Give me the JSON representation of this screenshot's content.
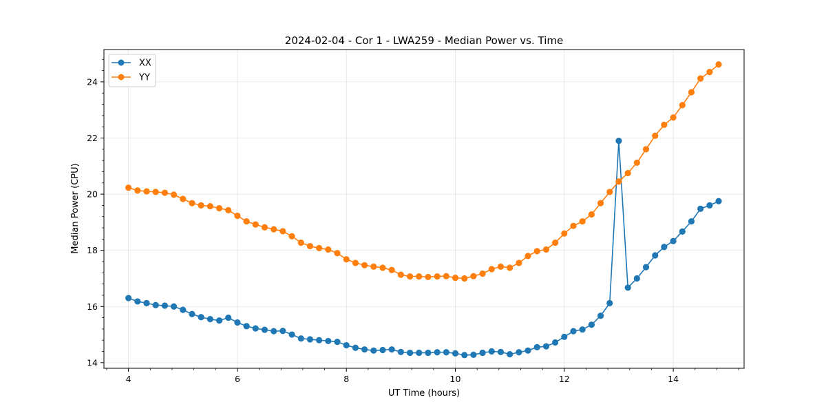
{
  "chart_data": {
    "type": "line",
    "title": "2024-02-04 - Cor 1 - LWA259 - Median Power vs. Time",
    "xlabel": "UT Time (hours)",
    "ylabel": "Median Power (CPU)",
    "xlim": [
      3.55,
      15.3
    ],
    "ylim": [
      13.8,
      25.15
    ],
    "xticks": [
      4,
      6,
      8,
      10,
      12,
      14
    ],
    "xtick_labels": [
      "4",
      "6",
      "8",
      "10",
      "12",
      "14"
    ],
    "yticks": [
      14,
      16,
      18,
      20,
      22,
      24
    ],
    "ytick_labels": [
      "14",
      "16",
      "18",
      "20",
      "22",
      "24"
    ],
    "grid": true,
    "legend_position": "top-left",
    "x": [
      4.0,
      4.167,
      4.333,
      4.5,
      4.667,
      4.833,
      5.0,
      5.167,
      5.333,
      5.5,
      5.667,
      5.833,
      6.0,
      6.167,
      6.333,
      6.5,
      6.667,
      6.833,
      7.0,
      7.167,
      7.333,
      7.5,
      7.667,
      7.833,
      8.0,
      8.167,
      8.333,
      8.5,
      8.667,
      8.833,
      9.0,
      9.167,
      9.333,
      9.5,
      9.667,
      9.833,
      10.0,
      10.167,
      10.333,
      10.5,
      10.667,
      10.833,
      11.0,
      11.167,
      11.333,
      11.5,
      11.667,
      11.833,
      12.0,
      12.167,
      12.333,
      12.5,
      12.667,
      12.833,
      13.0,
      13.167,
      13.333,
      13.5,
      13.667,
      13.833,
      14.0,
      14.167,
      14.333,
      14.5,
      14.667,
      14.833
    ],
    "series": [
      {
        "name": "XX",
        "color": "#1f77b4",
        "values": [
          16.3,
          16.18,
          16.12,
          16.05,
          16.03,
          16.0,
          15.88,
          15.73,
          15.62,
          15.55,
          15.5,
          15.6,
          15.43,
          15.3,
          15.22,
          15.17,
          15.12,
          15.13,
          15.0,
          14.86,
          14.83,
          14.8,
          14.77,
          14.74,
          14.62,
          14.53,
          14.47,
          14.43,
          14.45,
          14.47,
          14.38,
          14.35,
          14.35,
          14.35,
          14.37,
          14.37,
          14.33,
          14.27,
          14.28,
          14.35,
          14.4,
          14.38,
          14.3,
          14.37,
          14.43,
          14.55,
          14.58,
          14.72,
          14.92,
          15.12,
          15.18,
          15.35,
          15.67,
          16.12,
          21.9,
          16.67,
          17.0,
          17.4,
          17.82,
          18.12,
          18.33,
          18.67,
          19.03,
          19.48,
          19.6,
          19.75
        ]
      },
      {
        "name": "YY",
        "color": "#ff7f0e",
        "values": [
          20.23,
          20.13,
          20.1,
          20.08,
          20.05,
          19.98,
          19.83,
          19.68,
          19.6,
          19.57,
          19.5,
          19.43,
          19.23,
          19.03,
          18.92,
          18.82,
          18.75,
          18.68,
          18.5,
          18.27,
          18.15,
          18.08,
          18.03,
          17.9,
          17.68,
          17.55,
          17.47,
          17.42,
          17.38,
          17.3,
          17.13,
          17.07,
          17.07,
          17.05,
          17.07,
          17.08,
          17.02,
          17.0,
          17.08,
          17.17,
          17.33,
          17.42,
          17.38,
          17.55,
          17.8,
          17.97,
          18.03,
          18.27,
          18.6,
          18.87,
          19.03,
          19.28,
          19.68,
          20.08,
          20.45,
          20.75,
          21.12,
          21.6,
          22.08,
          22.47,
          22.73,
          23.17,
          23.63,
          24.12,
          24.35,
          24.62
        ]
      }
    ]
  }
}
